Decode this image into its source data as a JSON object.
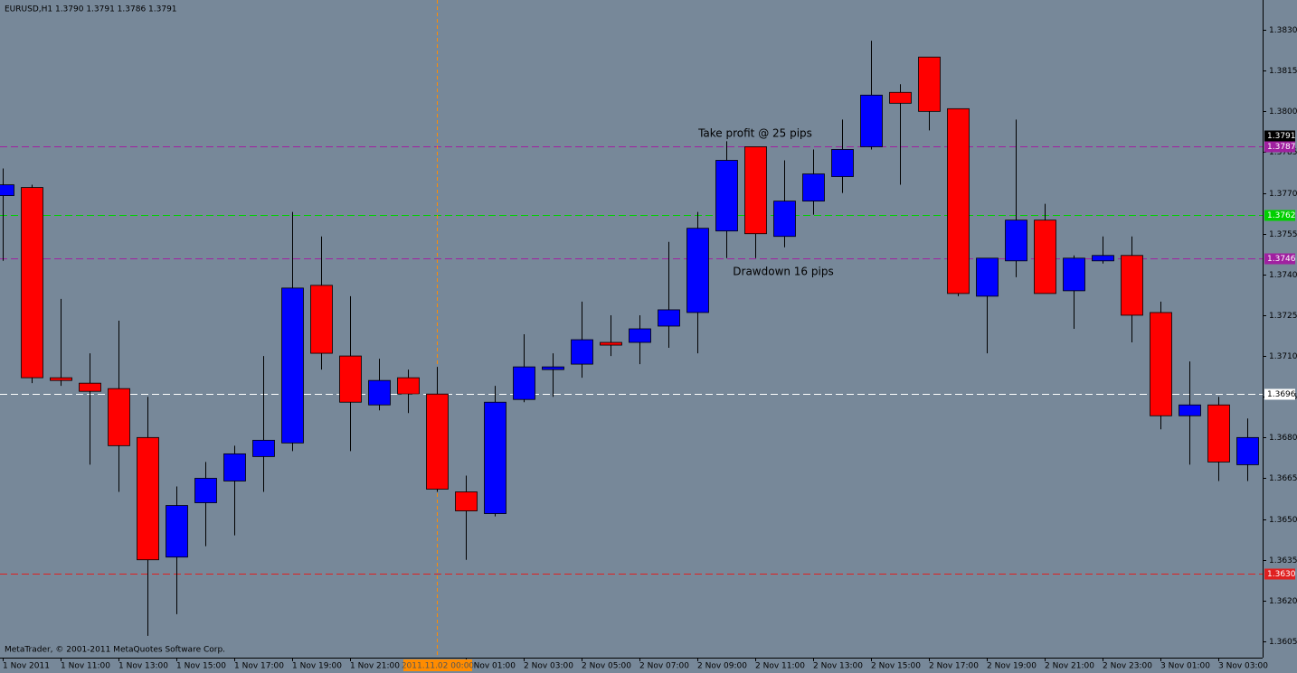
{
  "chart_data": {
    "type": "candlestick",
    "title": "EURUSD,H1  1.3790 1.3791 1.3786 1.3791",
    "copyright": "MetaTrader, © 2001-2011 MetaQuotes Software Corp.",
    "annotations": [
      "Take profit @ 25 pips",
      "Drawdown 16 pips"
    ],
    "categories": [
      "1 Nov 2011",
      null,
      "1 Nov 11:00",
      null,
      "1 Nov 13:00",
      null,
      "1 Nov 15:00",
      null,
      "1 Nov 17:00",
      null,
      "1 Nov 19:00",
      null,
      "1 Nov 21:00",
      null,
      null,
      null,
      "2 Nov 01:00",
      null,
      "2 Nov 03:00",
      null,
      "2 Nov 05:00",
      null,
      "2 Nov 07:00",
      null,
      "2 Nov 09:00",
      null,
      "2 Nov 11:00",
      null,
      "2 Nov 13:00",
      null,
      "2 Nov 15:00",
      null,
      "2 Nov 17:00",
      null,
      "2 Nov 19:00",
      null,
      "2 Nov 21:00",
      null,
      "2 Nov 23:00",
      null,
      "3 Nov 01:00",
      null,
      "3 Nov 03:00",
      null
    ],
    "open": [
      1.3769,
      1.3772,
      1.3702,
      1.37,
      1.3698,
      1.368,
      1.3636,
      1.3656,
      1.3664,
      1.3673,
      1.3678,
      1.3736,
      1.371,
      1.3692,
      1.3702,
      1.3696,
      1.366,
      1.3652,
      1.3694,
      1.3705,
      1.3707,
      1.3715,
      1.3715,
      1.3721,
      1.3726,
      1.3756,
      1.3787,
      1.3754,
      1.3767,
      1.3776,
      1.3787,
      1.3807,
      1.382,
      1.3801,
      1.3732,
      1.3745,
      1.376,
      1.3734,
      1.3745,
      1.3747,
      1.3726,
      1.3688,
      1.3692,
      1.367
    ],
    "high": [
      1.3779,
      1.3773,
      1.3731,
      1.3711,
      1.3723,
      1.3695,
      1.3662,
      1.3671,
      1.3677,
      1.371,
      1.3763,
      1.3754,
      1.3732,
      1.3709,
      1.3705,
      1.3706,
      1.3666,
      1.3699,
      1.3718,
      1.3711,
      1.373,
      1.3725,
      1.3725,
      1.3752,
      1.3763,
      1.3789,
      1.3787,
      1.3782,
      1.3786,
      1.3797,
      1.3826,
      1.381,
      1.382,
      1.3801,
      1.3746,
      1.3797,
      1.3766,
      1.3747,
      1.3754,
      1.3754,
      1.373,
      1.3708,
      1.3695,
      1.3687
    ],
    "low": [
      1.3745,
      1.37,
      1.3699,
      1.367,
      1.366,
      1.3607,
      1.3615,
      1.364,
      1.3644,
      1.366,
      1.3675,
      1.3705,
      1.3675,
      1.369,
      1.3689,
      1.366,
      1.3635,
      1.3651,
      1.3693,
      1.3695,
      1.3702,
      1.371,
      1.3707,
      1.3713,
      1.3711,
      1.3746,
      1.3746,
      1.375,
      1.3762,
      1.377,
      1.3786,
      1.3773,
      1.3793,
      1.3732,
      1.3711,
      1.3739,
      1.3733,
      1.372,
      1.3744,
      1.3715,
      1.3683,
      1.367,
      1.3664,
      1.3664
    ],
    "close": [
      1.3773,
      1.3702,
      1.3701,
      1.3697,
      1.3677,
      1.3635,
      1.3655,
      1.3665,
      1.3674,
      1.3679,
      1.3735,
      1.3711,
      1.3693,
      1.3701,
      1.3696,
      1.3661,
      1.3653,
      1.3693,
      1.3706,
      1.3706,
      1.3716,
      1.3714,
      1.372,
      1.3727,
      1.3757,
      1.3782,
      1.3755,
      1.3767,
      1.3777,
      1.3786,
      1.3806,
      1.3803,
      1.38,
      1.3733,
      1.3746,
      1.376,
      1.3733,
      1.3746,
      1.3747,
      1.3725,
      1.3688,
      1.3692,
      1.3671,
      1.368
    ],
    "up_color": "#0000ff",
    "down_color": "#ff0000",
    "ylim": [
      1.3599,
      1.3841
    ],
    "yticks": [
      1.3605,
      {
        "value": 1.362,
        "label": "1.3620"
      },
      1.3635,
      {
        "value": 1.365,
        "label": "1.3650"
      },
      1.3665,
      {
        "value": 1.368,
        "label": "1.3680"
      },
      1.3695,
      {
        "value": 1.371,
        "label": "1.3710"
      },
      1.3725,
      {
        "value": 1.374,
        "label": "1.3740"
      },
      1.3755,
      {
        "value": 1.377,
        "label": "1.3770"
      },
      1.3785,
      {
        "value": 1.38,
        "label": "1.3800"
      },
      1.3815,
      {
        "value": 1.383,
        "label": "1.3830"
      }
    ],
    "levels": [
      {
        "value": 1.3787,
        "label": "1.3787",
        "color": "#a020a0"
      },
      {
        "value": 1.3762,
        "label": "1.3762",
        "color": "#00d000"
      },
      {
        "value": 1.3746,
        "label": "1.3746",
        "color": "#a020a0"
      },
      {
        "value": 1.3696,
        "label": "1.3696",
        "color": "#ffffff"
      },
      {
        "value": 1.363,
        "label": "1.3630",
        "color": "#e02020"
      }
    ],
    "current_price": {
      "value": 1.3791,
      "label": "1.3791"
    },
    "crosshair": {
      "label": "2011.11.02 00:00",
      "color": "#ff8c00"
    }
  }
}
